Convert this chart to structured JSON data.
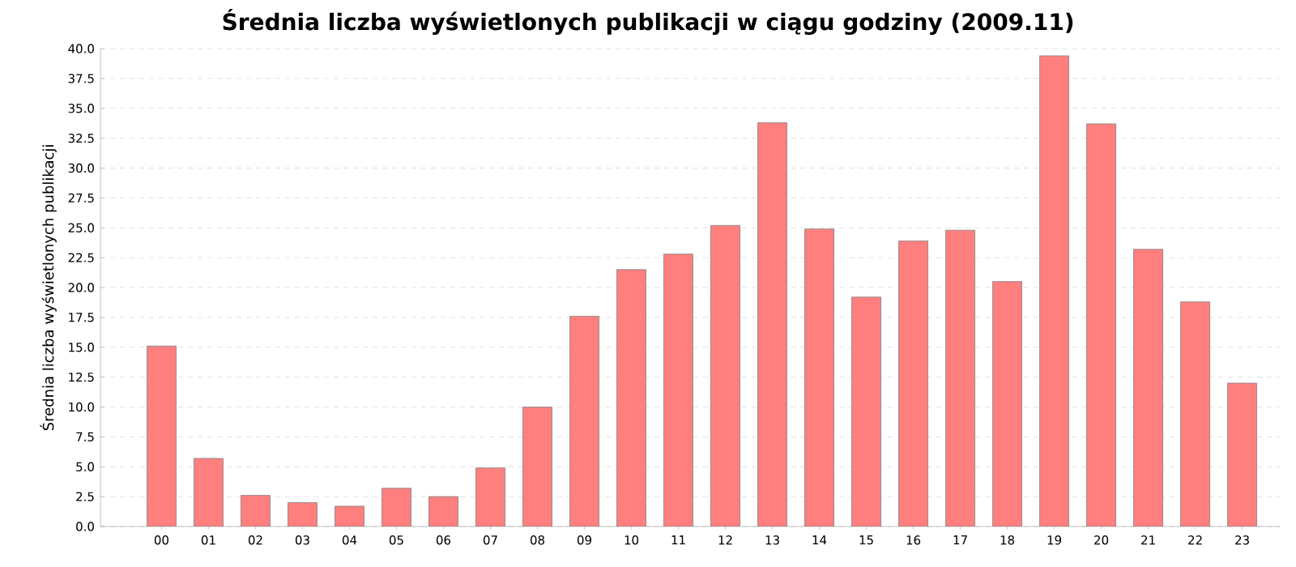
{
  "chart_data": {
    "type": "bar",
    "title": "Średnia liczba wyświetlonych publikacji w ciągu godziny (2009.11)",
    "ylabel": "Średnia liczba wyświetlonych publikacji",
    "categories": [
      "00",
      "01",
      "02",
      "03",
      "04",
      "05",
      "06",
      "07",
      "08",
      "09",
      "10",
      "11",
      "12",
      "13",
      "14",
      "15",
      "16",
      "17",
      "18",
      "19",
      "20",
      "21",
      "22",
      "23"
    ],
    "values": [
      15.1,
      5.7,
      2.6,
      2.0,
      1.7,
      3.2,
      2.5,
      4.9,
      10.0,
      17.6,
      21.5,
      22.8,
      25.2,
      33.8,
      24.9,
      19.2,
      23.9,
      24.8,
      20.5,
      39.4,
      33.7,
      23.2,
      18.8,
      12.0
    ],
    "color": "#ff7f7f",
    "ylim": [
      0,
      40
    ],
    "yticks": [
      {
        "value": 0,
        "label": "0.0"
      },
      {
        "value": 2.5,
        "label": "2.5"
      },
      {
        "value": 5,
        "label": "5.0"
      },
      {
        "value": 7.5,
        "label": "7.5"
      },
      {
        "value": 10,
        "label": "10.0"
      },
      {
        "value": 12.5,
        "label": "12.5"
      },
      {
        "value": 15,
        "label": "15.0"
      },
      {
        "value": 17.5,
        "label": "17.5"
      },
      {
        "value": 20,
        "label": "20.0"
      },
      {
        "value": 22.5,
        "label": "22.5"
      },
      {
        "value": 25,
        "label": "25.0"
      },
      {
        "value": 27.5,
        "label": "27.5"
      },
      {
        "value": 30,
        "label": "30.0"
      },
      {
        "value": 32.5,
        "label": "32.5"
      },
      {
        "value": 35,
        "label": "35.0"
      },
      {
        "value": 37.5,
        "label": "37.5"
      },
      {
        "value": 40,
        "label": "40.0"
      }
    ],
    "grid": "y"
  }
}
